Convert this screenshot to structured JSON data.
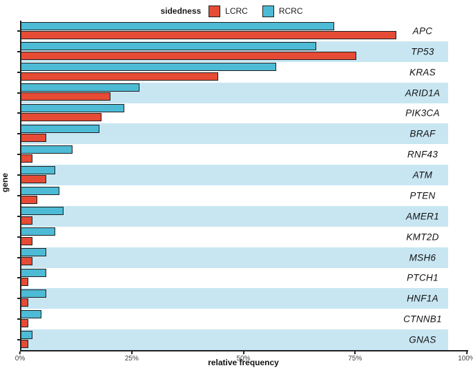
{
  "legend": {
    "title": "sidedness",
    "items": [
      {
        "label": "LCRC",
        "color": "#E64B35"
      },
      {
        "label": "RCRC",
        "color": "#4DBBD5"
      }
    ]
  },
  "colors": {
    "lcrc": "#E64B35",
    "rcrc": "#4DBBD5",
    "stripe": "#C8E6F2",
    "axis": "#1F1F1F"
  },
  "chart_data": {
    "type": "bar",
    "orientation": "horizontal",
    "title": "",
    "xlabel": "relative frequency",
    "ylabel": "gene",
    "xlim": [
      0,
      100
    ],
    "x_tick_labels": [
      "0%",
      "25%",
      "50%",
      "75%",
      "100%"
    ],
    "legend_title": "sidedness",
    "legend_position": "top",
    "grid": false,
    "striped_rows": "alternating light-blue background on TP53, ARID1A, BRAF, ATM, AMER1, MSH6, HNF1A, GNAS",
    "units": "percent",
    "categories": [
      "APC",
      "TP53",
      "KRAS",
      "ARID1A",
      "PIK3CA",
      "BRAF",
      "RNF43",
      "ATM",
      "PTEN",
      "AMER1",
      "KMT2D",
      "MSH6",
      "PTCH1",
      "HNF1A",
      "CTNNB1",
      "GNAS"
    ],
    "series": [
      {
        "name": "LCRC",
        "color": "#E64B35",
        "values": [
          84,
          75,
          44,
          20,
          18,
          5.5,
          2.5,
          5.5,
          3.5,
          2.5,
          2.5,
          2.5,
          1.5,
          1.5,
          1.5,
          1.5
        ]
      },
      {
        "name": "RCRC",
        "color": "#4DBBD5",
        "values": [
          70,
          66,
          57,
          26.5,
          23,
          17.5,
          11.5,
          7.5,
          8.5,
          9.5,
          7.5,
          5.5,
          5.5,
          5.5,
          4.5,
          2.5
        ]
      }
    ]
  }
}
